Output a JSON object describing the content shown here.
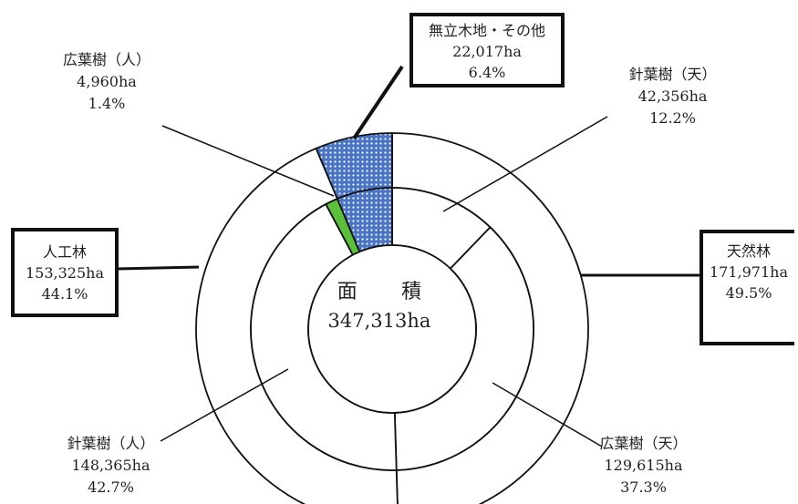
{
  "chart_data": {
    "type": "pie",
    "subtype": "nested-donut",
    "center": {
      "title": "面　積",
      "total": "347,313ha"
    },
    "outer_ring": [
      {
        "name": "天然林",
        "area": "171,971ha",
        "percent": "49.5%",
        "value": 171971,
        "fill": "#ffffff"
      },
      {
        "name": "人工林",
        "area": "153,325ha",
        "percent": "44.1%",
        "value": 153325,
        "fill": "#ffffff"
      },
      {
        "name": "無立木地・その他",
        "area": "22,017ha",
        "percent": "6.4%",
        "value": 22017,
        "fill": "#4a74c4",
        "pattern": "dotted"
      }
    ],
    "inner_ring": [
      {
        "name": "針葉樹（天）",
        "area": "42,356ha",
        "percent": "12.2%",
        "value": 42356,
        "fill": "#ffffff"
      },
      {
        "name": "広葉樹（天）",
        "area": "129,615ha",
        "percent": "37.3%",
        "value": 129615,
        "fill": "#ffffff"
      },
      {
        "name": "針葉樹（人）",
        "area": "148,365ha",
        "percent": "42.7%",
        "value": 148365,
        "fill": "#ffffff"
      },
      {
        "name": "広葉樹（人）",
        "area": "4,960ha",
        "percent": "1.4%",
        "value": 4960,
        "fill": "#5cbf3c"
      },
      {
        "name": "無立木地・その他",
        "value": 22017,
        "fill": "#4a74c4",
        "pattern": "dotted"
      }
    ]
  }
}
